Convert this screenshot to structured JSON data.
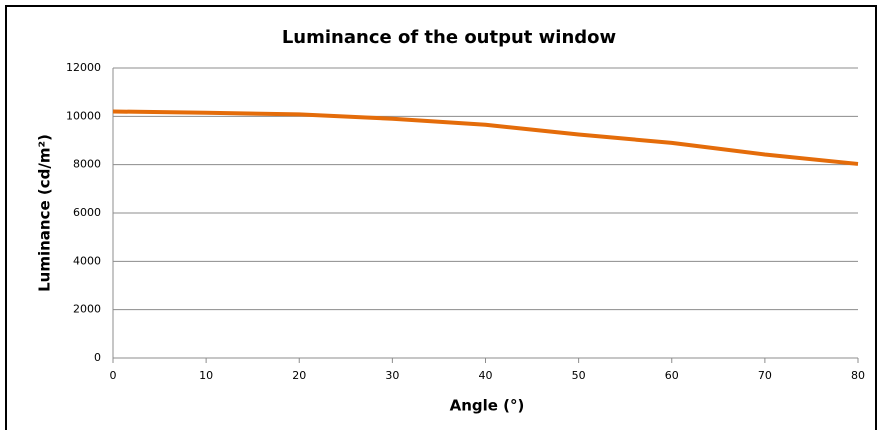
{
  "chart_data": {
    "type": "line",
    "title": "Luminance of the output window",
    "x_label": "Angle (°)",
    "y_label": "Luminance (cd/m²)",
    "x": [
      0,
      10,
      20,
      30,
      40,
      50,
      60,
      70,
      80
    ],
    "series": [
      {
        "name": "Luminance",
        "color": "#e46c0a",
        "values": [
          10200,
          10150,
          10080,
          9900,
          9650,
          9250,
          8900,
          8420,
          8030
        ]
      }
    ],
    "xlim": [
      0,
      80
    ],
    "xticks": [
      0,
      10,
      20,
      30,
      40,
      50,
      60,
      70,
      80
    ],
    "ylim": [
      0,
      12000
    ],
    "yticks": [
      0,
      2000,
      4000,
      6000,
      8000,
      10000,
      12000
    ],
    "grid": true
  }
}
